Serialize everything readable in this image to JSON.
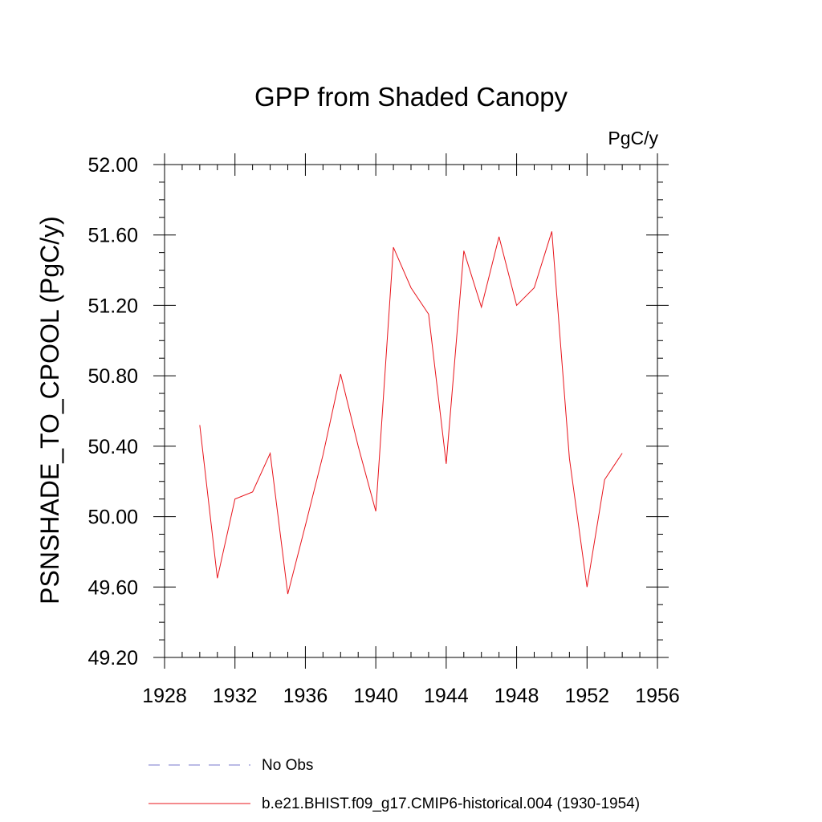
{
  "chart_data": {
    "type": "line",
    "title": "GPP from Shaded Canopy",
    "units_label": "PgC/y",
    "ylabel": "PSNSHADE_TO_CPOOL  (PgC/y)",
    "xlabel": "",
    "xlim": [
      1928,
      1956
    ],
    "ylim": [
      49.2,
      52.0
    ],
    "x_ticks": [
      1928,
      1932,
      1936,
      1940,
      1944,
      1948,
      1952,
      1956
    ],
    "x_tick_labels": [
      "1928",
      "1932",
      "1936",
      "1940",
      "1944",
      "1948",
      "1952",
      "1956"
    ],
    "y_ticks": [
      49.2,
      49.6,
      50.0,
      50.4,
      50.8,
      51.2,
      51.6,
      52.0
    ],
    "y_tick_labels": [
      "49.20",
      "49.60",
      "50.00",
      "50.40",
      "50.80",
      "51.20",
      "51.60",
      "52.00"
    ],
    "grid": false,
    "legend_position": "bottom",
    "legend": [
      {
        "label": "No Obs",
        "style": "dashed",
        "color": "#7777cc"
      },
      {
        "label": "b.e21.BHIST.f09_g17.CMIP6-historical.004 (1930-1954)",
        "style": "solid",
        "color": "#e8141b"
      }
    ],
    "series": [
      {
        "name": "b.e21.BHIST.f09_g17.CMIP6-historical.004 (1930-1954)",
        "color": "#e8141b",
        "x": [
          1930,
          1931,
          1932,
          1933,
          1934,
          1935,
          1936,
          1937,
          1938,
          1939,
          1940,
          1941,
          1942,
          1943,
          1944,
          1945,
          1946,
          1947,
          1948,
          1949,
          1950,
          1951,
          1952,
          1953,
          1954
        ],
        "y": [
          50.52,
          49.65,
          50.1,
          50.14,
          50.36,
          49.56,
          49.95,
          50.35,
          50.81,
          50.4,
          50.03,
          51.53,
          51.3,
          51.15,
          50.3,
          51.51,
          51.19,
          51.59,
          51.2,
          51.3,
          51.62,
          50.33,
          49.6,
          50.21,
          50.36
        ]
      }
    ]
  }
}
